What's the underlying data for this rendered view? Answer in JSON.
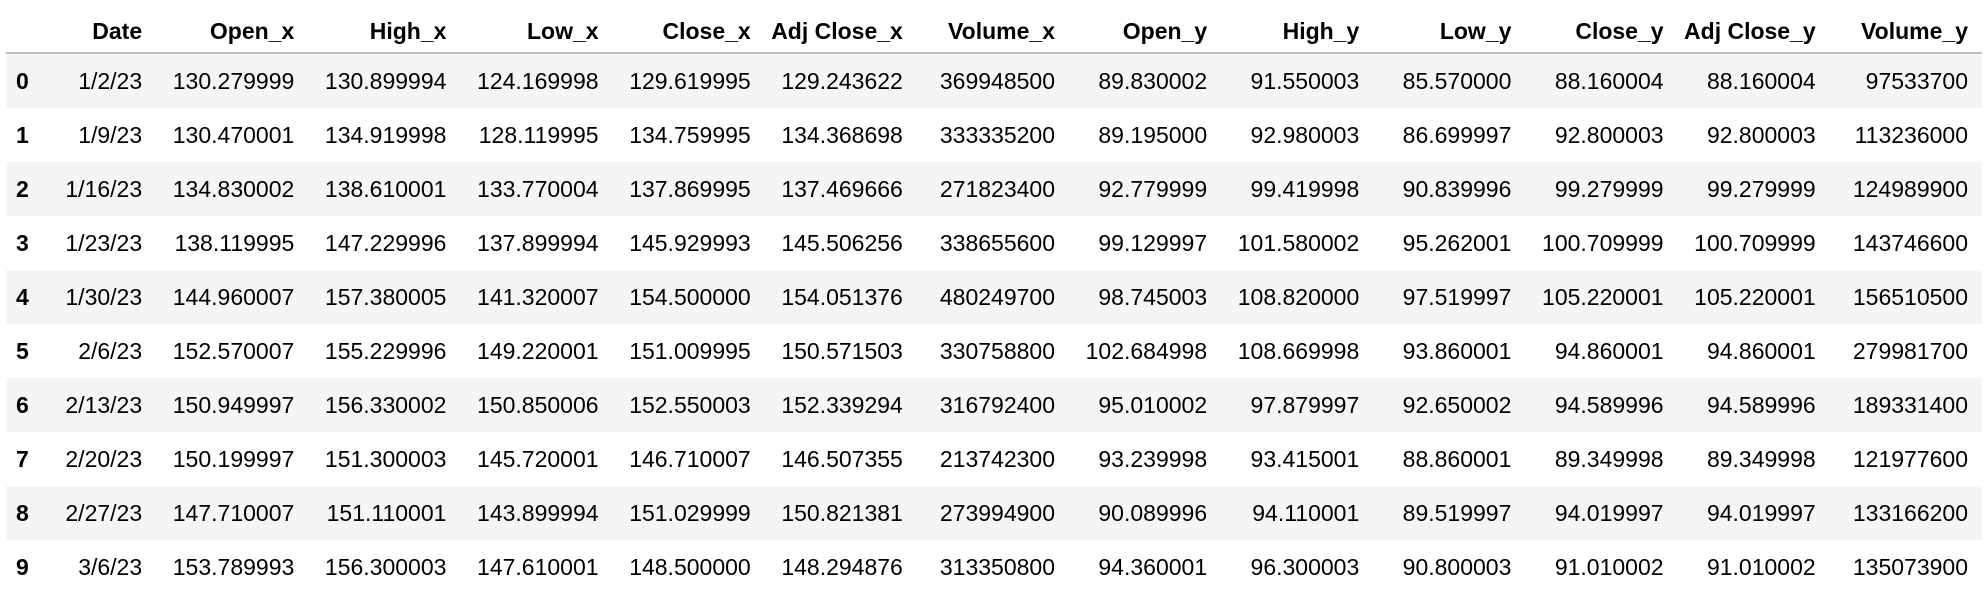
{
  "table": {
    "index_header": "",
    "columns": [
      "Date",
      "Open_x",
      "High_x",
      "Low_x",
      "Close_x",
      "Adj Close_x",
      "Volume_x",
      "Open_y",
      "High_y",
      "Low_y",
      "Close_y",
      "Adj Close_y",
      "Volume_y"
    ],
    "rows": [
      {
        "index": "0",
        "cells": [
          "1/2/23",
          "130.279999",
          "130.899994",
          "124.169998",
          "129.619995",
          "129.243622",
          "369948500",
          "89.830002",
          "91.550003",
          "85.570000",
          "88.160004",
          "88.160004",
          "97533700"
        ]
      },
      {
        "index": "1",
        "cells": [
          "1/9/23",
          "130.470001",
          "134.919998",
          "128.119995",
          "134.759995",
          "134.368698",
          "333335200",
          "89.195000",
          "92.980003",
          "86.699997",
          "92.800003",
          "92.800003",
          "113236000"
        ]
      },
      {
        "index": "2",
        "cells": [
          "1/16/23",
          "134.830002",
          "138.610001",
          "133.770004",
          "137.869995",
          "137.469666",
          "271823400",
          "92.779999",
          "99.419998",
          "90.839996",
          "99.279999",
          "99.279999",
          "124989900"
        ]
      },
      {
        "index": "3",
        "cells": [
          "1/23/23",
          "138.119995",
          "147.229996",
          "137.899994",
          "145.929993",
          "145.506256",
          "338655600",
          "99.129997",
          "101.580002",
          "95.262001",
          "100.709999",
          "100.709999",
          "143746600"
        ]
      },
      {
        "index": "4",
        "cells": [
          "1/30/23",
          "144.960007",
          "157.380005",
          "141.320007",
          "154.500000",
          "154.051376",
          "480249700",
          "98.745003",
          "108.820000",
          "97.519997",
          "105.220001",
          "105.220001",
          "156510500"
        ]
      },
      {
        "index": "5",
        "cells": [
          "2/6/23",
          "152.570007",
          "155.229996",
          "149.220001",
          "151.009995",
          "150.571503",
          "330758800",
          "102.684998",
          "108.669998",
          "93.860001",
          "94.860001",
          "94.860001",
          "279981700"
        ]
      },
      {
        "index": "6",
        "cells": [
          "2/13/23",
          "150.949997",
          "156.330002",
          "150.850006",
          "152.550003",
          "152.339294",
          "316792400",
          "95.010002",
          "97.879997",
          "92.650002",
          "94.589996",
          "94.589996",
          "189331400"
        ]
      },
      {
        "index": "7",
        "cells": [
          "2/20/23",
          "150.199997",
          "151.300003",
          "145.720001",
          "146.710007",
          "146.507355",
          "213742300",
          "93.239998",
          "93.415001",
          "88.860001",
          "89.349998",
          "89.349998",
          "121977600"
        ]
      },
      {
        "index": "8",
        "cells": [
          "2/27/23",
          "147.710007",
          "151.110001",
          "143.899994",
          "151.029999",
          "150.821381",
          "273994900",
          "90.089996",
          "94.110001",
          "89.519997",
          "94.019997",
          "94.019997",
          "133166200"
        ]
      },
      {
        "index": "9",
        "cells": [
          "3/6/23",
          "153.789993",
          "156.300003",
          "147.610001",
          "148.500000",
          "148.294876",
          "313350800",
          "94.360001",
          "96.300003",
          "90.800003",
          "91.010002",
          "91.010002",
          "135073900"
        ]
      }
    ]
  }
}
